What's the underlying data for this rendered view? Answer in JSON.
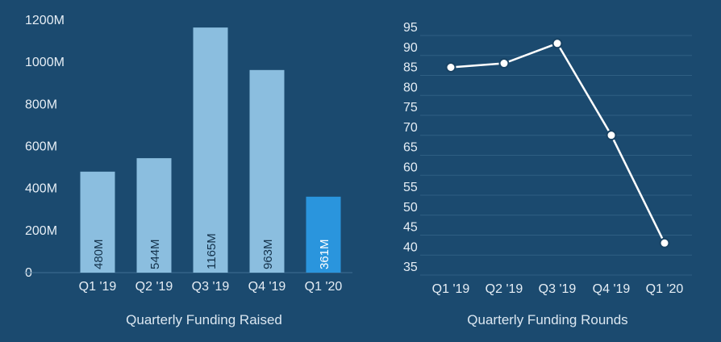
{
  "colors": {
    "background": "#1b4a6f",
    "bar": "#8bbedf",
    "bar_highlight": "#2a95dd",
    "line": "#ffffff",
    "grid": "#2f5f83"
  },
  "chart_data": [
    {
      "type": "bar",
      "title": "Quarterly Funding Raised",
      "categories": [
        "Q1 '19",
        "Q2 '19",
        "Q3 '19",
        "Q4 '19",
        "Q1 '20"
      ],
      "values": [
        480,
        544,
        1165,
        963,
        361
      ],
      "value_labels": [
        "480M",
        "544M",
        "1165M",
        "963M",
        "361M"
      ],
      "highlight_index": 4,
      "yticks": [
        "0",
        "200M",
        "400M",
        "600M",
        "800M",
        "1000M",
        "1200M"
      ],
      "ylim": [
        0,
        1200
      ],
      "xlabel": "",
      "ylabel": ""
    },
    {
      "type": "line",
      "title": "Quarterly Funding Rounds",
      "categories": [
        "Q1 '19",
        "Q2 '19",
        "Q3 '19",
        "Q4 '19",
        "Q1 '20"
      ],
      "values": [
        85,
        86,
        91,
        68,
        41
      ],
      "yticks": [
        "35",
        "40",
        "45",
        "50",
        "55",
        "60",
        "65",
        "70",
        "75",
        "80",
        "85",
        "90",
        "95"
      ],
      "ylim": [
        33,
        95
      ],
      "grid": true,
      "xlabel": "",
      "ylabel": ""
    }
  ]
}
